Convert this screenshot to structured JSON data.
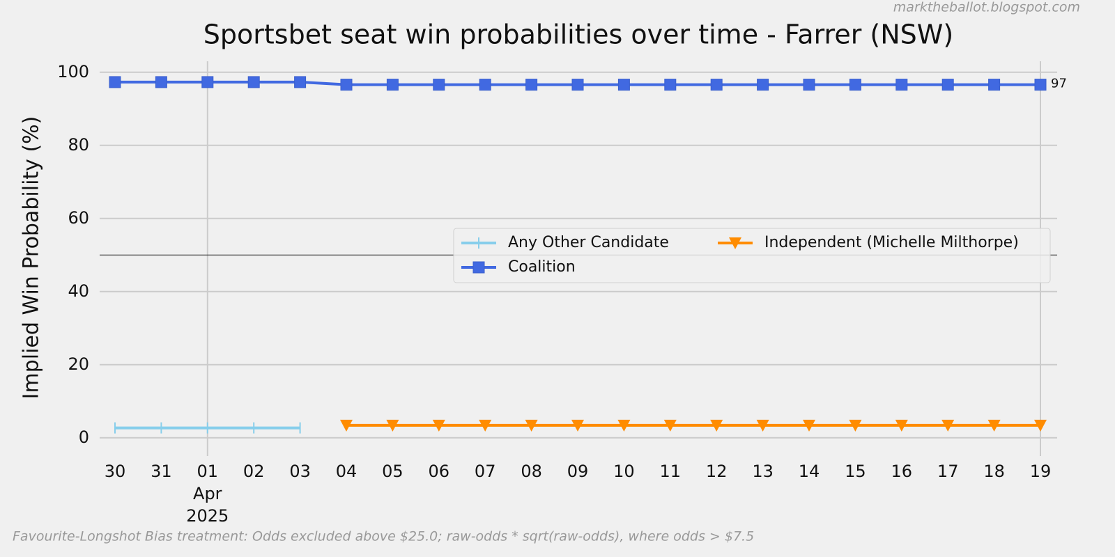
{
  "chart_data": {
    "type": "line",
    "title": "Sportsbet seat win probabilities over time - Farrer (NSW)",
    "ylabel": "Implied Win Probability (%)",
    "watermark": "marktheballot.blogspot.com",
    "footnote": "Favourite-Longshot Bias treatment: Odds excluded above $25.0; raw-odds * sqrt(raw-odds), where odds > $7.5",
    "categories": [
      "30",
      "31",
      "01",
      "02",
      "03",
      "04",
      "05",
      "06",
      "07",
      "08",
      "09",
      "10",
      "11",
      "12",
      "13",
      "14",
      "15",
      "16",
      "17",
      "18",
      "19"
    ],
    "month_label": "Apr",
    "year_label": "2025",
    "ylim": [
      -5,
      103
    ],
    "yticks": [
      0,
      20,
      40,
      60,
      80,
      100
    ],
    "hline": 50,
    "grid": true,
    "legend": "center right",
    "series": [
      {
        "name": "Any Other Candidate",
        "color": "#87ceeb",
        "marker": "|",
        "values": [
          2.7,
          2.7,
          2.7,
          2.7,
          2.7,
          null,
          null,
          null,
          null,
          null,
          null,
          null,
          null,
          null,
          null,
          null,
          null,
          null,
          null,
          null,
          null
        ]
      },
      {
        "name": "Coalition",
        "color": "#4169e1",
        "marker": "s",
        "end_label": "97",
        "values": [
          97.3,
          97.3,
          97.3,
          97.3,
          97.3,
          96.6,
          96.6,
          96.6,
          96.6,
          96.6,
          96.6,
          96.6,
          96.6,
          96.6,
          96.6,
          96.6,
          96.6,
          96.6,
          96.6,
          96.6,
          96.6
        ]
      },
      {
        "name": "Independent (Michelle Milthorpe)",
        "color": "#ff8c00",
        "marker": "v",
        "values": [
          null,
          null,
          null,
          null,
          null,
          3.4,
          3.4,
          3.4,
          3.4,
          3.4,
          3.4,
          3.4,
          3.4,
          3.4,
          3.4,
          3.4,
          3.4,
          3.4,
          3.4,
          3.4,
          3.4
        ]
      }
    ]
  }
}
